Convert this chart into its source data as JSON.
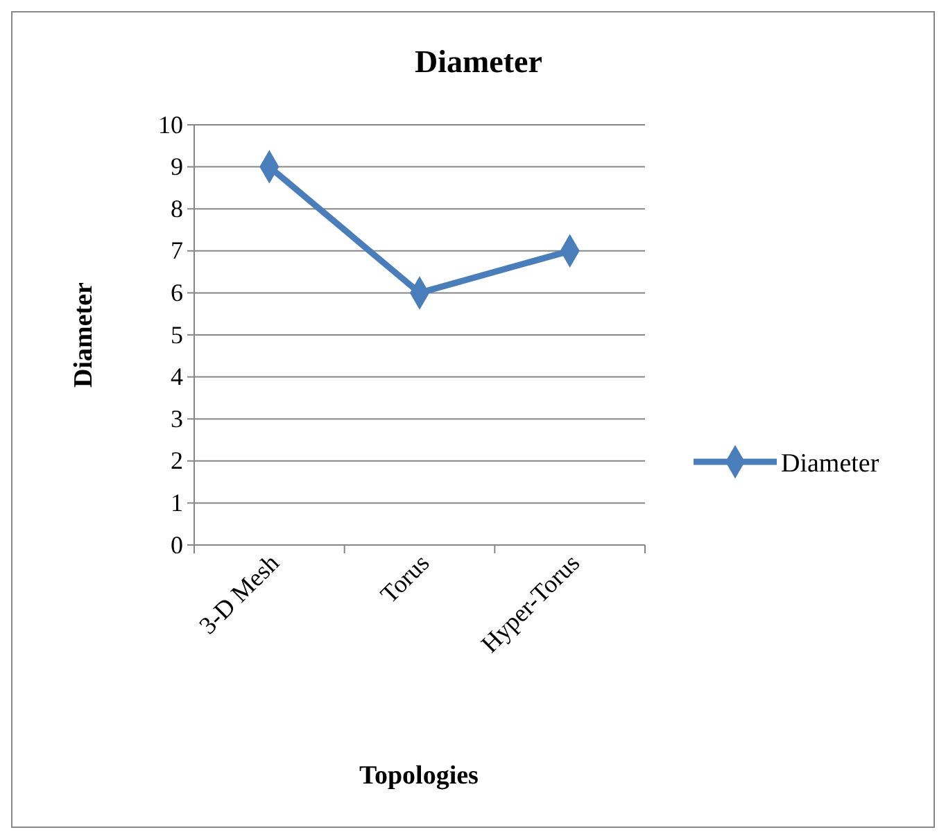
{
  "chart_data": {
    "type": "line",
    "title": "Diameter",
    "xlabel": "Topologies",
    "ylabel": "Diameter",
    "categories": [
      "3-D Mesh",
      "Torus",
      "Hyper-Torus"
    ],
    "series": [
      {
        "name": "Diameter",
        "color": "#4a7ebb",
        "values": [
          9,
          6,
          7
        ]
      }
    ],
    "ylim": [
      0,
      10
    ],
    "yticks": [
      0,
      1,
      2,
      3,
      4,
      5,
      6,
      7,
      8,
      9,
      10
    ],
    "grid": "y",
    "legend": "right",
    "marker": "diamond",
    "line_style": "solid"
  }
}
